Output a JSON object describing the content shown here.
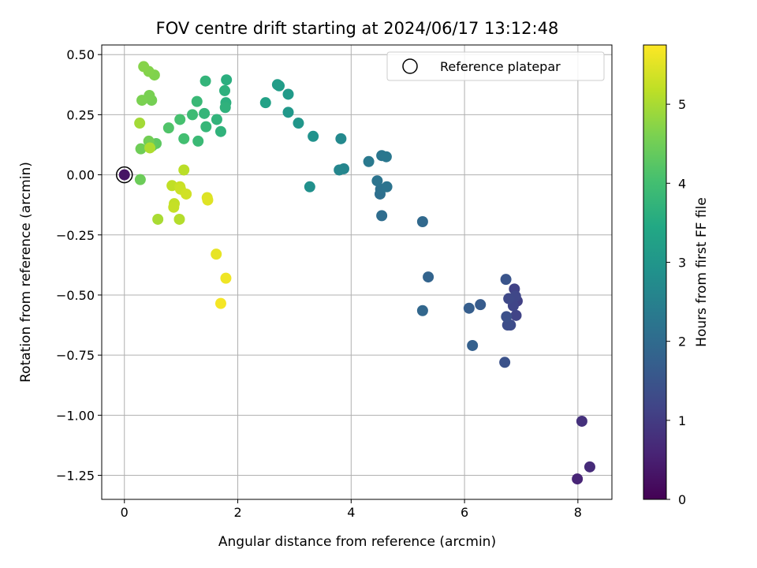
{
  "chart_data": {
    "type": "scatter",
    "title": "FOV centre drift starting at 2024/06/17 13:12:48",
    "xlabel": "Angular distance from reference (arcmin)",
    "ylabel": "Rotation from reference (arcmin)",
    "xlim": [
      -0.4,
      8.6
    ],
    "ylim": [
      -1.35,
      0.54
    ],
    "xticks": [
      0,
      2,
      4,
      6,
      8
    ],
    "xtick_labels": [
      "0",
      "2",
      "4",
      "6",
      "8"
    ],
    "yticks": [
      0.5,
      0.25,
      0.0,
      -0.25,
      -0.5,
      -0.75,
      -1.0,
      -1.25
    ],
    "ytick_labels": [
      "0.50",
      "0.25",
      "0.00",
      "−0.25",
      "−0.50",
      "−0.75",
      "−1.00",
      "−1.25"
    ],
    "grid": true,
    "legend": {
      "placement": "upper right",
      "entries": [
        "Reference platepar"
      ]
    },
    "colorbar": {
      "label": "Hours from first FF file",
      "colormap": "viridis",
      "range": [
        0,
        5.75
      ],
      "ticks": [
        0,
        1,
        2,
        3,
        4,
        5
      ],
      "tick_labels": [
        "0",
        "1",
        "2",
        "3",
        "4",
        "5"
      ]
    },
    "reference_point": {
      "x": 0.0,
      "y": 0.0
    },
    "points": [
      {
        "x": 0.0,
        "y": 0.0,
        "t": 0.3
      },
      {
        "x": 7.99,
        "y": -1.265,
        "t": 0.6
      },
      {
        "x": 8.21,
        "y": -1.215,
        "t": 0.7
      },
      {
        "x": 8.07,
        "y": -1.025,
        "t": 0.8
      },
      {
        "x": 6.93,
        "y": -0.525,
        "t": 1.1
      },
      {
        "x": 6.88,
        "y": -0.475,
        "t": 1.12
      },
      {
        "x": 6.91,
        "y": -0.585,
        "t": 1.15
      },
      {
        "x": 6.86,
        "y": -0.545,
        "t": 1.2
      },
      {
        "x": 6.9,
        "y": -0.505,
        "t": 1.22
      },
      {
        "x": 6.78,
        "y": -0.515,
        "t": 1.25
      },
      {
        "x": 6.81,
        "y": -0.625,
        "t": 1.3
      },
      {
        "x": 6.76,
        "y": -0.625,
        "t": 1.35
      },
      {
        "x": 6.74,
        "y": -0.59,
        "t": 1.4
      },
      {
        "x": 6.71,
        "y": -0.78,
        "t": 1.45
      },
      {
        "x": 6.73,
        "y": -0.435,
        "t": 1.5
      },
      {
        "x": 6.28,
        "y": -0.54,
        "t": 1.65
      },
      {
        "x": 6.08,
        "y": -0.555,
        "t": 1.7
      },
      {
        "x": 6.14,
        "y": -0.71,
        "t": 1.75
      },
      {
        "x": 5.36,
        "y": -0.425,
        "t": 1.85
      },
      {
        "x": 5.26,
        "y": -0.565,
        "t": 1.9
      },
      {
        "x": 5.26,
        "y": -0.195,
        "t": 1.95
      },
      {
        "x": 4.54,
        "y": -0.17,
        "t": 2.05
      },
      {
        "x": 4.51,
        "y": -0.08,
        "t": 2.1
      },
      {
        "x": 4.52,
        "y": -0.06,
        "t": 2.15
      },
      {
        "x": 4.63,
        "y": -0.05,
        "t": 2.18
      },
      {
        "x": 4.46,
        "y": -0.025,
        "t": 2.2
      },
      {
        "x": 4.54,
        "y": 0.08,
        "t": 2.25
      },
      {
        "x": 4.62,
        "y": 0.075,
        "t": 2.28
      },
      {
        "x": 4.31,
        "y": 0.055,
        "t": 2.32
      },
      {
        "x": 3.87,
        "y": 0.025,
        "t": 2.6
      },
      {
        "x": 3.79,
        "y": 0.02,
        "t": 2.62
      },
      {
        "x": 3.82,
        "y": 0.15,
        "t": 2.68
      },
      {
        "x": 3.27,
        "y": -0.05,
        "t": 2.85
      },
      {
        "x": 3.33,
        "y": 0.16,
        "t": 2.9
      },
      {
        "x": 3.07,
        "y": 0.215,
        "t": 3.0
      },
      {
        "x": 2.89,
        "y": 0.26,
        "t": 3.05
      },
      {
        "x": 2.89,
        "y": 0.335,
        "t": 3.1
      },
      {
        "x": 2.73,
        "y": 0.37,
        "t": 3.15
      },
      {
        "x": 2.7,
        "y": 0.375,
        "t": 3.18
      },
      {
        "x": 2.49,
        "y": 0.3,
        "t": 3.28
      },
      {
        "x": 1.8,
        "y": 0.395,
        "t": 3.6
      },
      {
        "x": 1.79,
        "y": 0.3,
        "t": 3.62
      },
      {
        "x": 1.77,
        "y": 0.35,
        "t": 3.65
      },
      {
        "x": 1.78,
        "y": 0.28,
        "t": 3.68
      },
      {
        "x": 1.7,
        "y": 0.18,
        "t": 3.7
      },
      {
        "x": 1.63,
        "y": 0.23,
        "t": 3.72
      },
      {
        "x": 1.43,
        "y": 0.39,
        "t": 3.75
      },
      {
        "x": 1.41,
        "y": 0.255,
        "t": 3.78
      },
      {
        "x": 1.44,
        "y": 0.2,
        "t": 3.8
      },
      {
        "x": 1.28,
        "y": 0.305,
        "t": 3.85
      },
      {
        "x": 1.3,
        "y": 0.14,
        "t": 3.88
      },
      {
        "x": 1.2,
        "y": 0.25,
        "t": 3.92
      },
      {
        "x": 1.05,
        "y": 0.15,
        "t": 4.0
      },
      {
        "x": 0.98,
        "y": 0.23,
        "t": 4.05
      },
      {
        "x": 0.78,
        "y": 0.195,
        "t": 4.15
      },
      {
        "x": 0.56,
        "y": 0.13,
        "t": 4.3
      },
      {
        "x": 0.49,
        "y": 0.12,
        "t": 4.35
      },
      {
        "x": 0.28,
        "y": -0.02,
        "t": 4.45
      },
      {
        "x": 0.29,
        "y": 0.108,
        "t": 4.48
      },
      {
        "x": 0.43,
        "y": 0.14,
        "t": 4.52
      },
      {
        "x": 0.48,
        "y": 0.31,
        "t": 4.55
      },
      {
        "x": 0.44,
        "y": 0.33,
        "t": 4.58
      },
      {
        "x": 0.31,
        "y": 0.31,
        "t": 4.6
      },
      {
        "x": 0.53,
        "y": 0.415,
        "t": 4.65
      },
      {
        "x": 0.43,
        "y": 0.43,
        "t": 4.68
      },
      {
        "x": 0.34,
        "y": 0.45,
        "t": 4.7
      },
      {
        "x": 0.27,
        "y": 0.215,
        "t": 4.95
      },
      {
        "x": 0.59,
        "y": -0.185,
        "t": 5.0
      },
      {
        "x": 0.45,
        "y": 0.112,
        "t": 5.05
      },
      {
        "x": 0.97,
        "y": -0.185,
        "t": 5.1
      },
      {
        "x": 1.05,
        "y": 0.02,
        "t": 5.15
      },
      {
        "x": 0.84,
        "y": -0.045,
        "t": 5.2
      },
      {
        "x": 0.88,
        "y": -0.12,
        "t": 5.22
      },
      {
        "x": 0.87,
        "y": -0.135,
        "t": 5.25
      },
      {
        "x": 0.98,
        "y": -0.05,
        "t": 5.28
      },
      {
        "x": 0.99,
        "y": -0.06,
        "t": 5.3
      },
      {
        "x": 1.09,
        "y": -0.08,
        "t": 5.35
      },
      {
        "x": 1.46,
        "y": -0.095,
        "t": 5.45
      },
      {
        "x": 1.47,
        "y": -0.105,
        "t": 5.48
      },
      {
        "x": 1.62,
        "y": -0.33,
        "t": 5.55
      },
      {
        "x": 1.79,
        "y": -0.43,
        "t": 5.62
      },
      {
        "x": 1.7,
        "y": -0.535,
        "t": 5.68
      }
    ]
  }
}
